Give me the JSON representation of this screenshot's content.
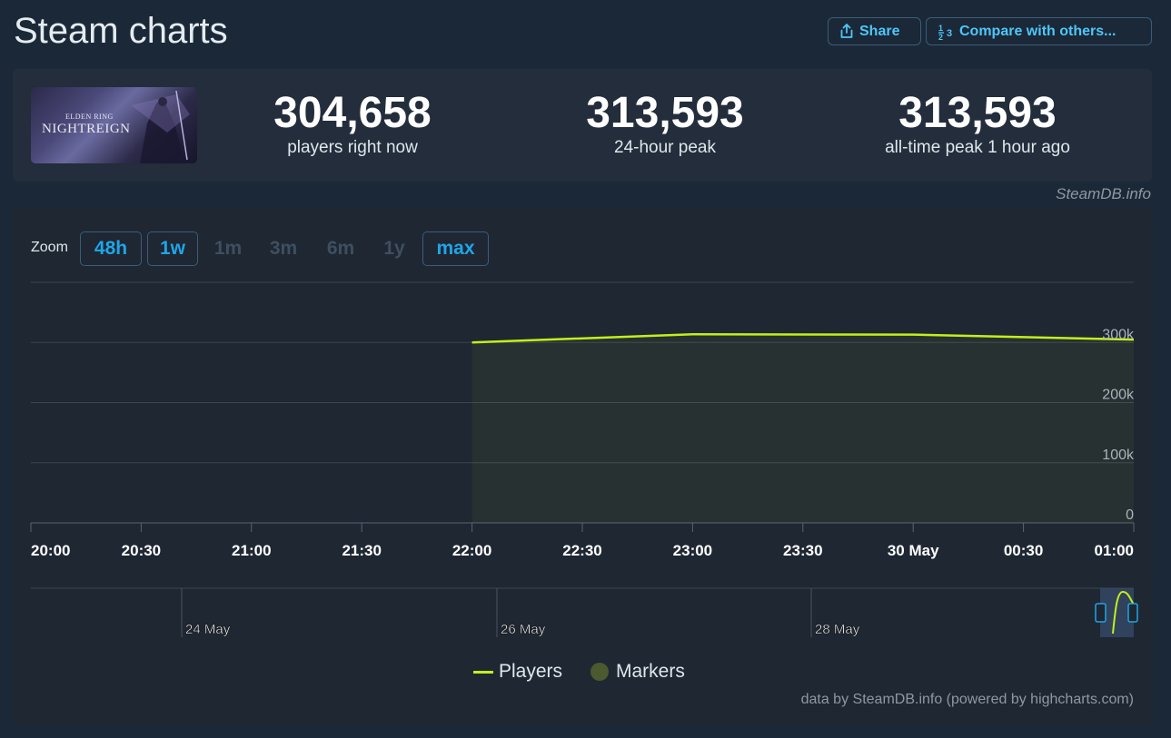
{
  "page": {
    "title": "Steam charts"
  },
  "toolbar": {
    "share_label": "Share",
    "compare_label": "Compare with others..."
  },
  "game": {
    "cover_line1": "ELDEN RING",
    "cover_line2": "NIGHTREIGN"
  },
  "stats": [
    {
      "value": "304,658",
      "label": "players right now"
    },
    {
      "value": "313,593",
      "label": "24-hour peak"
    },
    {
      "value": "313,593",
      "label": "all-time peak 1 hour ago"
    }
  ],
  "source_label": "SteamDB.info",
  "zoom": {
    "label": "Zoom",
    "options": [
      "48h",
      "1w",
      "1m",
      "3m",
      "6m",
      "1y",
      "max"
    ],
    "active": [
      "48h",
      "1w",
      "max"
    ]
  },
  "legend": {
    "players": "Players",
    "markers": "Markers"
  },
  "credit": "data by SteamDB.info (powered by highcharts.com)",
  "colors": {
    "players_line": "#c3ef19",
    "accent": "#1fa5e8",
    "markers": "#4b5a2f"
  },
  "chart_data": {
    "type": "line",
    "series": [
      {
        "name": "Players",
        "x": [
          "22:00",
          "23:00",
          "00:00",
          "01:00"
        ],
        "values": [
          300000,
          313593,
          313000,
          304658
        ]
      }
    ],
    "x_ticks": [
      "20:00",
      "20:30",
      "21:00",
      "21:30",
      "22:00",
      "22:30",
      "23:00",
      "23:30",
      "30 May",
      "00:30",
      "01:00"
    ],
    "y_ticks": [
      "0",
      "100k",
      "200k",
      "300k"
    ],
    "ylim": [
      0,
      400000
    ],
    "grid": true,
    "navigator_labels": [
      "24 May",
      "26 May",
      "28 May"
    ],
    "legend_placement": "bottom-center"
  }
}
